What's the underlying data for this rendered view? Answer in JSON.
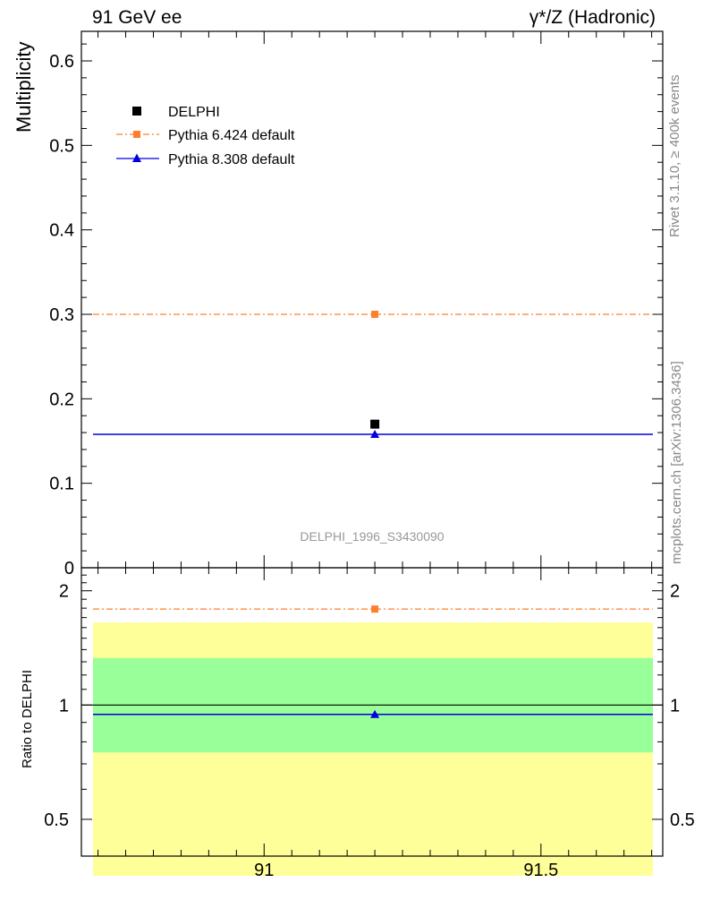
{
  "header": {
    "left": "91 GeV ee",
    "right": "γ*/Z (Hadronic)"
  },
  "side_labels": {
    "rivet": "Rivet 3.1.10, ≥ 400k events",
    "mcplots": "mcplots.cern.ch [arXiv:1306.3436]"
  },
  "colors": {
    "data": "#000000",
    "pythia6": "#ff7f2a",
    "pythia8": "#0000dd",
    "band_inner": "#99ff99",
    "band_outer": "#ffff99"
  },
  "chart_data": [
    {
      "type": "scatter",
      "ylabel": "Multiplicity",
      "ylim": [
        0,
        0.635
      ],
      "xlim": [
        90.67,
        91.72
      ],
      "yticks": [
        0,
        0.1,
        0.2,
        0.3,
        0.4,
        0.5,
        0.6
      ],
      "ytick_labels": [
        "0",
        "0.1",
        "0.2",
        "0.3",
        "0.4",
        "0.5",
        "0.6"
      ],
      "analysis_label": "DELPHI_1996_S3430090",
      "legend": [
        {
          "name": "DELPHI",
          "marker": "square"
        },
        {
          "name": "Pythia 6.424 default",
          "marker": "square",
          "line": "dashdot"
        },
        {
          "name": "Pythia 8.308 default",
          "marker": "triangle",
          "line": "solid"
        }
      ],
      "series": [
        {
          "name": "DELPHI",
          "x": [
            91.2
          ],
          "y": [
            0.17
          ]
        },
        {
          "name": "Pythia 6.424 default",
          "x": [
            91.2
          ],
          "y": [
            0.3
          ],
          "xrange": [
            90.67,
            91.72
          ]
        },
        {
          "name": "Pythia 8.308 default",
          "x": [
            91.2
          ],
          "y": [
            0.158
          ],
          "xrange": [
            90.67,
            91.72
          ]
        }
      ]
    },
    {
      "type": "scatter",
      "ylabel": "Ratio to DELPHI",
      "ylim": [
        0.4,
        2.3
      ],
      "log_y": true,
      "xlim": [
        90.67,
        91.72
      ],
      "xticks": [
        91,
        91.5
      ],
      "xtick_labels": [
        "91",
        "91.5"
      ],
      "yticks": [
        0.5,
        1,
        2
      ],
      "ytick_labels": [
        "0.5",
        "1",
        "2"
      ],
      "bands": {
        "inner": [
          0.75,
          1.33
        ],
        "outer": [
          0.355,
          1.65
        ]
      },
      "series": [
        {
          "name": "Pythia 6.424 default",
          "x": [
            91.2
          ],
          "y": [
            1.79
          ]
        },
        {
          "name": "Pythia 8.308 default",
          "x": [
            91.2
          ],
          "y": [
            0.945
          ]
        }
      ]
    }
  ]
}
